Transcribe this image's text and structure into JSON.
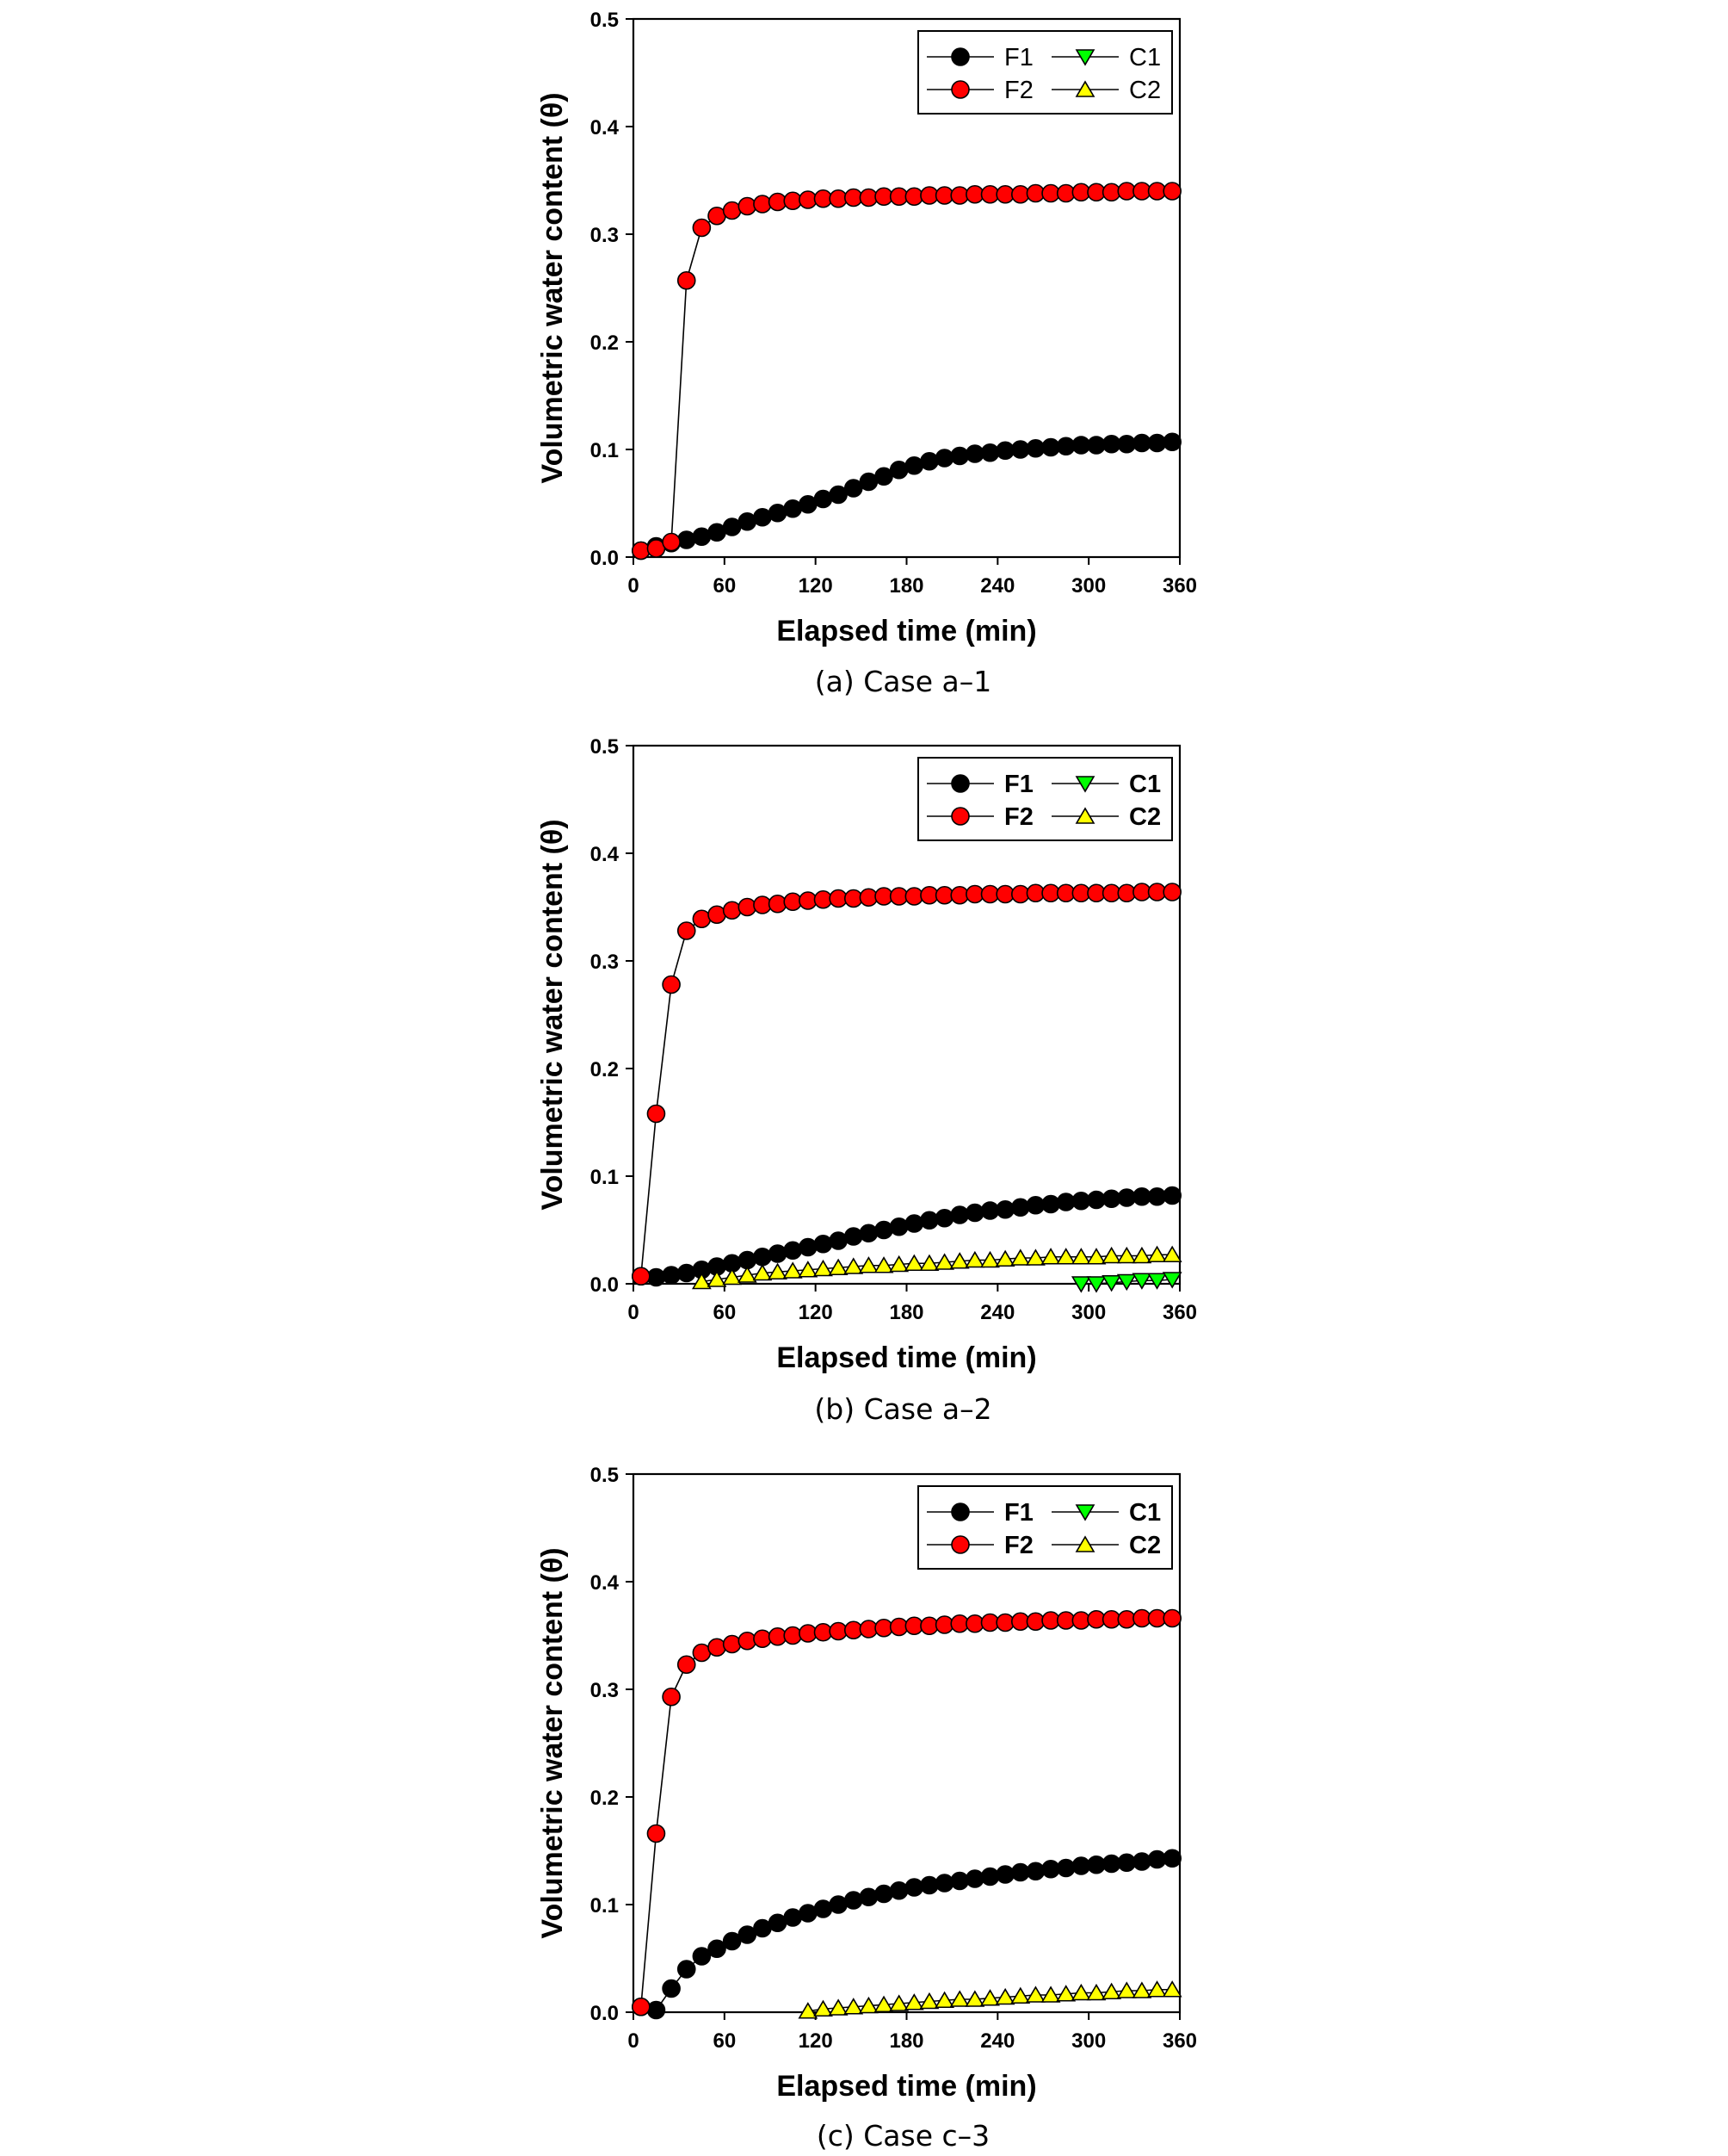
{
  "chart_data": [
    {
      "type": "line",
      "caption": "(a) Case a–1",
      "xlabel": "Elapsed time (min)",
      "ylabel": "Volumetric water content (θ)",
      "xlim": [
        0,
        360
      ],
      "ylim": [
        0,
        0.5
      ],
      "xticks": [
        "0",
        "60",
        "120",
        "180",
        "240",
        "300",
        "360"
      ],
      "yticks": [
        "0.0",
        "0.1",
        "0.2",
        "0.3",
        "0.4",
        "0.5"
      ],
      "legend_position": "top-right",
      "legend_bold": false,
      "series": [
        {
          "name": "F1",
          "marker": "circle",
          "color": "#000000",
          "x": [
            5,
            15,
            25,
            35,
            45,
            55,
            65,
            75,
            85,
            95,
            105,
            115,
            125,
            135,
            145,
            155,
            165,
            175,
            185,
            195,
            205,
            215,
            225,
            235,
            245,
            255,
            265,
            275,
            285,
            295,
            305,
            315,
            325,
            335,
            345,
            355
          ],
          "y": [
            0.006,
            0.01,
            0.013,
            0.016,
            0.019,
            0.023,
            0.028,
            0.033,
            0.037,
            0.041,
            0.045,
            0.049,
            0.054,
            0.058,
            0.064,
            0.07,
            0.075,
            0.081,
            0.085,
            0.089,
            0.092,
            0.094,
            0.096,
            0.097,
            0.099,
            0.1,
            0.101,
            0.102,
            0.103,
            0.104,
            0.104,
            0.105,
            0.105,
            0.106,
            0.106,
            0.107
          ]
        },
        {
          "name": "F2",
          "marker": "circle",
          "color": "#ff0000",
          "x": [
            5,
            15,
            25,
            35,
            45,
            55,
            65,
            75,
            85,
            95,
            105,
            115,
            125,
            135,
            145,
            155,
            165,
            175,
            185,
            195,
            205,
            215,
            225,
            235,
            245,
            255,
            265,
            275,
            285,
            295,
            305,
            315,
            325,
            335,
            345,
            355
          ],
          "y": [
            0.006,
            0.008,
            0.014,
            0.257,
            0.306,
            0.317,
            0.322,
            0.326,
            0.328,
            0.33,
            0.331,
            0.332,
            0.333,
            0.333,
            0.334,
            0.334,
            0.335,
            0.335,
            0.335,
            0.336,
            0.336,
            0.336,
            0.337,
            0.337,
            0.337,
            0.337,
            0.338,
            0.338,
            0.338,
            0.339,
            0.339,
            0.339,
            0.34,
            0.34,
            0.34,
            0.34
          ]
        },
        {
          "name": "C1",
          "marker": "triangle-down",
          "color": "#00ff00",
          "x": [],
          "y": []
        },
        {
          "name": "C2",
          "marker": "triangle-up",
          "color": "#ffff00",
          "x": [],
          "y": []
        }
      ]
    },
    {
      "type": "line",
      "caption": "(b) Case a–2",
      "xlabel": "Elapsed time (min)",
      "ylabel": "Volumetric water content (θ)",
      "xlim": [
        0,
        360
      ],
      "ylim": [
        0,
        0.5
      ],
      "xticks": [
        "0",
        "60",
        "120",
        "180",
        "240",
        "300",
        "360"
      ],
      "yticks": [
        "0.0",
        "0.1",
        "0.2",
        "0.3",
        "0.4",
        "0.5"
      ],
      "legend_position": "top-right",
      "legend_bold": true,
      "series": [
        {
          "name": "F1",
          "marker": "circle",
          "color": "#000000",
          "x": [
            5,
            15,
            25,
            35,
            45,
            55,
            65,
            75,
            85,
            95,
            105,
            115,
            125,
            135,
            145,
            155,
            165,
            175,
            185,
            195,
            205,
            215,
            225,
            235,
            245,
            255,
            265,
            275,
            285,
            295,
            305,
            315,
            325,
            335,
            345,
            355
          ],
          "y": [
            0.007,
            0.006,
            0.008,
            0.01,
            0.013,
            0.016,
            0.019,
            0.022,
            0.025,
            0.028,
            0.031,
            0.034,
            0.037,
            0.04,
            0.044,
            0.047,
            0.05,
            0.053,
            0.056,
            0.059,
            0.061,
            0.064,
            0.066,
            0.068,
            0.069,
            0.071,
            0.073,
            0.074,
            0.076,
            0.077,
            0.078,
            0.079,
            0.08,
            0.081,
            0.081,
            0.082
          ]
        },
        {
          "name": "F2",
          "marker": "circle",
          "color": "#ff0000",
          "x": [
            5,
            15,
            25,
            35,
            45,
            55,
            65,
            75,
            85,
            95,
            105,
            115,
            125,
            135,
            145,
            155,
            165,
            175,
            185,
            195,
            205,
            215,
            225,
            235,
            245,
            255,
            265,
            275,
            285,
            295,
            305,
            315,
            325,
            335,
            345,
            355
          ],
          "y": [
            0.007,
            0.158,
            0.278,
            0.328,
            0.339,
            0.343,
            0.347,
            0.35,
            0.352,
            0.353,
            0.355,
            0.356,
            0.357,
            0.358,
            0.358,
            0.359,
            0.36,
            0.36,
            0.36,
            0.361,
            0.361,
            0.361,
            0.362,
            0.362,
            0.362,
            0.362,
            0.363,
            0.363,
            0.363,
            0.363,
            0.363,
            0.363,
            0.363,
            0.364,
            0.364,
            0.364
          ]
        },
        {
          "name": "C1",
          "marker": "triangle-down",
          "color": "#00ff00",
          "x": [
            295,
            305,
            315,
            325,
            335,
            345,
            355
          ],
          "y": [
            0.0,
            0.0,
            0.001,
            0.002,
            0.003,
            0.003,
            0.004
          ]
        },
        {
          "name": "C2",
          "marker": "triangle-up",
          "color": "#ffff00",
          "x": [
            45,
            55,
            65,
            75,
            85,
            95,
            105,
            115,
            125,
            135,
            145,
            155,
            165,
            175,
            185,
            195,
            205,
            215,
            225,
            235,
            245,
            255,
            265,
            275,
            285,
            295,
            305,
            315,
            325,
            335,
            345,
            355
          ],
          "y": [
            0.002,
            0.004,
            0.006,
            0.008,
            0.01,
            0.011,
            0.012,
            0.013,
            0.014,
            0.015,
            0.016,
            0.017,
            0.017,
            0.018,
            0.019,
            0.019,
            0.02,
            0.021,
            0.022,
            0.022,
            0.023,
            0.024,
            0.024,
            0.025,
            0.025,
            0.025,
            0.025,
            0.026,
            0.026,
            0.026,
            0.027,
            0.027
          ]
        }
      ]
    },
    {
      "type": "line",
      "caption": "(c) Case c–3",
      "xlabel": "Elapsed time (min)",
      "ylabel": "Volumetric water content (θ)",
      "xlim": [
        0,
        360
      ],
      "ylim": [
        0,
        0.5
      ],
      "xticks": [
        "0",
        "60",
        "120",
        "180",
        "240",
        "300",
        "360"
      ],
      "yticks": [
        "0.0",
        "0.1",
        "0.2",
        "0.3",
        "0.4",
        "0.5"
      ],
      "legend_position": "top-right",
      "legend_bold": true,
      "series": [
        {
          "name": "F1",
          "marker": "circle",
          "color": "#000000",
          "x": [
            5,
            15,
            25,
            35,
            45,
            55,
            65,
            75,
            85,
            95,
            105,
            115,
            125,
            135,
            145,
            155,
            165,
            175,
            185,
            195,
            205,
            215,
            225,
            235,
            245,
            255,
            265,
            275,
            285,
            295,
            305,
            315,
            325,
            335,
            345,
            355
          ],
          "y": [
            0.005,
            0.002,
            0.022,
            0.04,
            0.052,
            0.059,
            0.066,
            0.072,
            0.078,
            0.083,
            0.088,
            0.092,
            0.096,
            0.1,
            0.104,
            0.107,
            0.11,
            0.113,
            0.116,
            0.118,
            0.12,
            0.122,
            0.124,
            0.126,
            0.128,
            0.13,
            0.131,
            0.133,
            0.134,
            0.136,
            0.137,
            0.138,
            0.139,
            0.14,
            0.142,
            0.143
          ]
        },
        {
          "name": "F2",
          "marker": "circle",
          "color": "#ff0000",
          "x": [
            5,
            15,
            25,
            35,
            45,
            55,
            65,
            75,
            85,
            95,
            105,
            115,
            125,
            135,
            145,
            155,
            165,
            175,
            185,
            195,
            205,
            215,
            225,
            235,
            245,
            255,
            265,
            275,
            285,
            295,
            305,
            315,
            325,
            335,
            345,
            355
          ],
          "y": [
            0.005,
            0.166,
            0.293,
            0.323,
            0.334,
            0.339,
            0.342,
            0.345,
            0.347,
            0.349,
            0.35,
            0.352,
            0.353,
            0.354,
            0.355,
            0.356,
            0.357,
            0.358,
            0.359,
            0.359,
            0.36,
            0.361,
            0.361,
            0.362,
            0.362,
            0.363,
            0.363,
            0.364,
            0.364,
            0.364,
            0.365,
            0.365,
            0.365,
            0.366,
            0.366,
            0.366
          ]
        },
        {
          "name": "C1",
          "marker": "triangle-down",
          "color": "#00ff00",
          "x": [],
          "y": []
        },
        {
          "name": "C2",
          "marker": "triangle-up",
          "color": "#ffff00",
          "x": [
            115,
            125,
            135,
            145,
            155,
            165,
            175,
            185,
            195,
            205,
            215,
            225,
            235,
            245,
            255,
            265,
            275,
            285,
            295,
            305,
            315,
            325,
            335,
            345,
            355
          ],
          "y": [
            0.001,
            0.003,
            0.004,
            0.005,
            0.006,
            0.007,
            0.008,
            0.009,
            0.01,
            0.011,
            0.012,
            0.012,
            0.013,
            0.014,
            0.015,
            0.016,
            0.016,
            0.017,
            0.018,
            0.018,
            0.019,
            0.02,
            0.02,
            0.021,
            0.021
          ]
        }
      ]
    }
  ]
}
